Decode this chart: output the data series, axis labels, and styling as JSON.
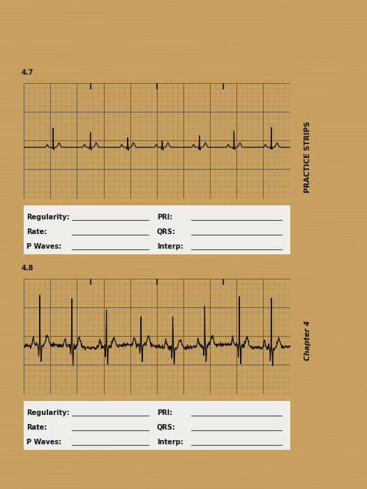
{
  "wood_bg": "#c8a060",
  "page_bg": "#e8e6e0",
  "ecg_bg": "#a8a090",
  "ecg_bg2": "#888078",
  "grid_minor_color": "#706860",
  "grid_major_color": "#504840",
  "ecg_line_color": "#111111",
  "label_color": "#111111",
  "box_bg": "#f0eeea",
  "box_border": "#555555",
  "sidebar_bg": "#d0ccc4",
  "strip1_label": "4.7",
  "strip2_label": "4.8",
  "fields_left": [
    "Regularity:",
    "Rate:",
    "P Waves:"
  ],
  "fields_right": [
    "PRI:",
    "QRS:",
    "Interp:"
  ],
  "sidebar_text_top": "PRACTICE STRIPS",
  "sidebar_text_bottom": "Chapter 4",
  "timing_mark_color": "#222222"
}
